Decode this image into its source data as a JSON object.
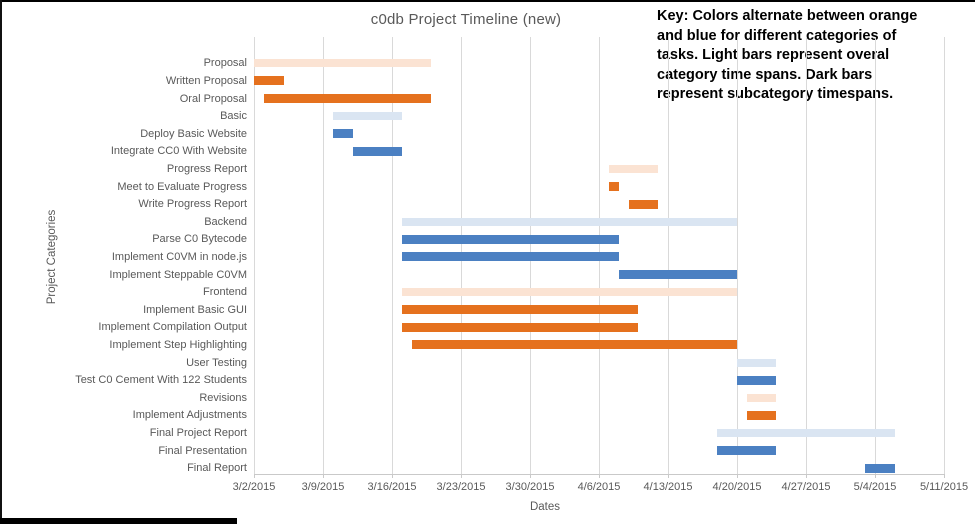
{
  "key_note": {
    "lines": [
      "Key: Colors alternate between orange",
      "and blue for different categories of",
      "tasks. Light bars represent overal",
      "category time spans. Dark bars",
      "represent subcategory timespans."
    ]
  },
  "chart_data": {
    "type": "bar",
    "subtype": "gantt",
    "title": "c0db Project Timeline (new)",
    "xlabel": "Dates",
    "ylabel": "Project Categories",
    "x_ticks": [
      "3/2/2015",
      "3/9/2015",
      "3/16/2015",
      "3/23/2015",
      "3/30/2015",
      "4/6/2015",
      "4/13/2015",
      "4/20/2015",
      "4/27/2015",
      "5/4/2015",
      "5/11/2015"
    ],
    "date_origin": "3/2/2015",
    "x_range_days": 70,
    "grid": "vertical",
    "legend": "none",
    "colors": {
      "orange_dark": "#E5711E",
      "orange_light": "#FBE3D3",
      "blue_dark": "#4B80C2",
      "blue_light": "#DAE5F2"
    },
    "bar_meaning": {
      "light": "overall category time span",
      "dark": "subcategory timespan"
    },
    "tasks": [
      {
        "label": "Proposal",
        "start": "3/2/2015",
        "end": "3/20/2015",
        "color": "orange_light",
        "level": "category"
      },
      {
        "label": "Written Proposal",
        "start": "3/2/2015",
        "end": "3/5/2015",
        "color": "orange_dark",
        "level": "subcategory"
      },
      {
        "label": "Oral Proposal",
        "start": "3/3/2015",
        "end": "3/20/2015",
        "color": "orange_dark",
        "level": "subcategory"
      },
      {
        "label": "Basic",
        "start": "3/10/2015",
        "end": "3/17/2015",
        "color": "blue_light",
        "level": "category"
      },
      {
        "label": "Deploy Basic Website",
        "start": "3/10/2015",
        "end": "3/12/2015",
        "color": "blue_dark",
        "level": "subcategory"
      },
      {
        "label": "Integrate CC0 With Website",
        "start": "3/12/2015",
        "end": "3/17/2015",
        "color": "blue_dark",
        "level": "subcategory"
      },
      {
        "label": "Progress Report",
        "start": "4/7/2015",
        "end": "4/12/2015",
        "color": "orange_light",
        "level": "category"
      },
      {
        "label": "Meet to Evaluate Progress",
        "start": "4/7/2015",
        "end": "4/8/2015",
        "color": "orange_dark",
        "level": "subcategory"
      },
      {
        "label": "Write Progress Report",
        "start": "4/9/2015",
        "end": "4/12/2015",
        "color": "orange_dark",
        "level": "subcategory"
      },
      {
        "label": "Backend",
        "start": "3/17/2015",
        "end": "4/20/2015",
        "color": "blue_light",
        "level": "category"
      },
      {
        "label": "Parse C0 Bytecode",
        "start": "3/17/2015",
        "end": "4/8/2015",
        "color": "blue_dark",
        "level": "subcategory"
      },
      {
        "label": "Implement C0VM in node.js",
        "start": "3/17/2015",
        "end": "4/8/2015",
        "color": "blue_dark",
        "level": "subcategory"
      },
      {
        "label": "Implement Steppable C0VM",
        "start": "4/8/2015",
        "end": "4/20/2015",
        "color": "blue_dark",
        "level": "subcategory"
      },
      {
        "label": "Frontend",
        "start": "3/17/2015",
        "end": "4/20/2015",
        "color": "orange_light",
        "level": "category"
      },
      {
        "label": "Implement Basic GUI",
        "start": "3/17/2015",
        "end": "4/10/2015",
        "color": "orange_dark",
        "level": "subcategory"
      },
      {
        "label": "Implement Compilation Output",
        "start": "3/17/2015",
        "end": "4/10/2015",
        "color": "orange_dark",
        "level": "subcategory"
      },
      {
        "label": "Implement Step Highlighting",
        "start": "3/18/2015",
        "end": "4/20/2015",
        "color": "orange_dark",
        "level": "subcategory"
      },
      {
        "label": "User Testing",
        "start": "4/20/2015",
        "end": "4/24/2015",
        "color": "blue_light",
        "level": "category"
      },
      {
        "label": "Test C0 Cement With 122 Students",
        "start": "4/20/2015",
        "end": "4/24/2015",
        "color": "blue_dark",
        "level": "subcategory"
      },
      {
        "label": "Revisions",
        "start": "4/21/2015",
        "end": "4/24/2015",
        "color": "orange_light",
        "level": "category"
      },
      {
        "label": "Implement Adjustments",
        "start": "4/21/2015",
        "end": "4/24/2015",
        "color": "orange_dark",
        "level": "subcategory"
      },
      {
        "label": "Final Project Report",
        "start": "4/18/2015",
        "end": "5/6/2015",
        "color": "blue_light",
        "level": "category"
      },
      {
        "label": "Final Presentation",
        "start": "4/18/2015",
        "end": "4/24/2015",
        "color": "blue_dark",
        "level": "subcategory"
      },
      {
        "label": "Final Report",
        "start": "5/3/2015",
        "end": "5/6/2015",
        "color": "blue_dark",
        "level": "subcategory"
      }
    ]
  }
}
